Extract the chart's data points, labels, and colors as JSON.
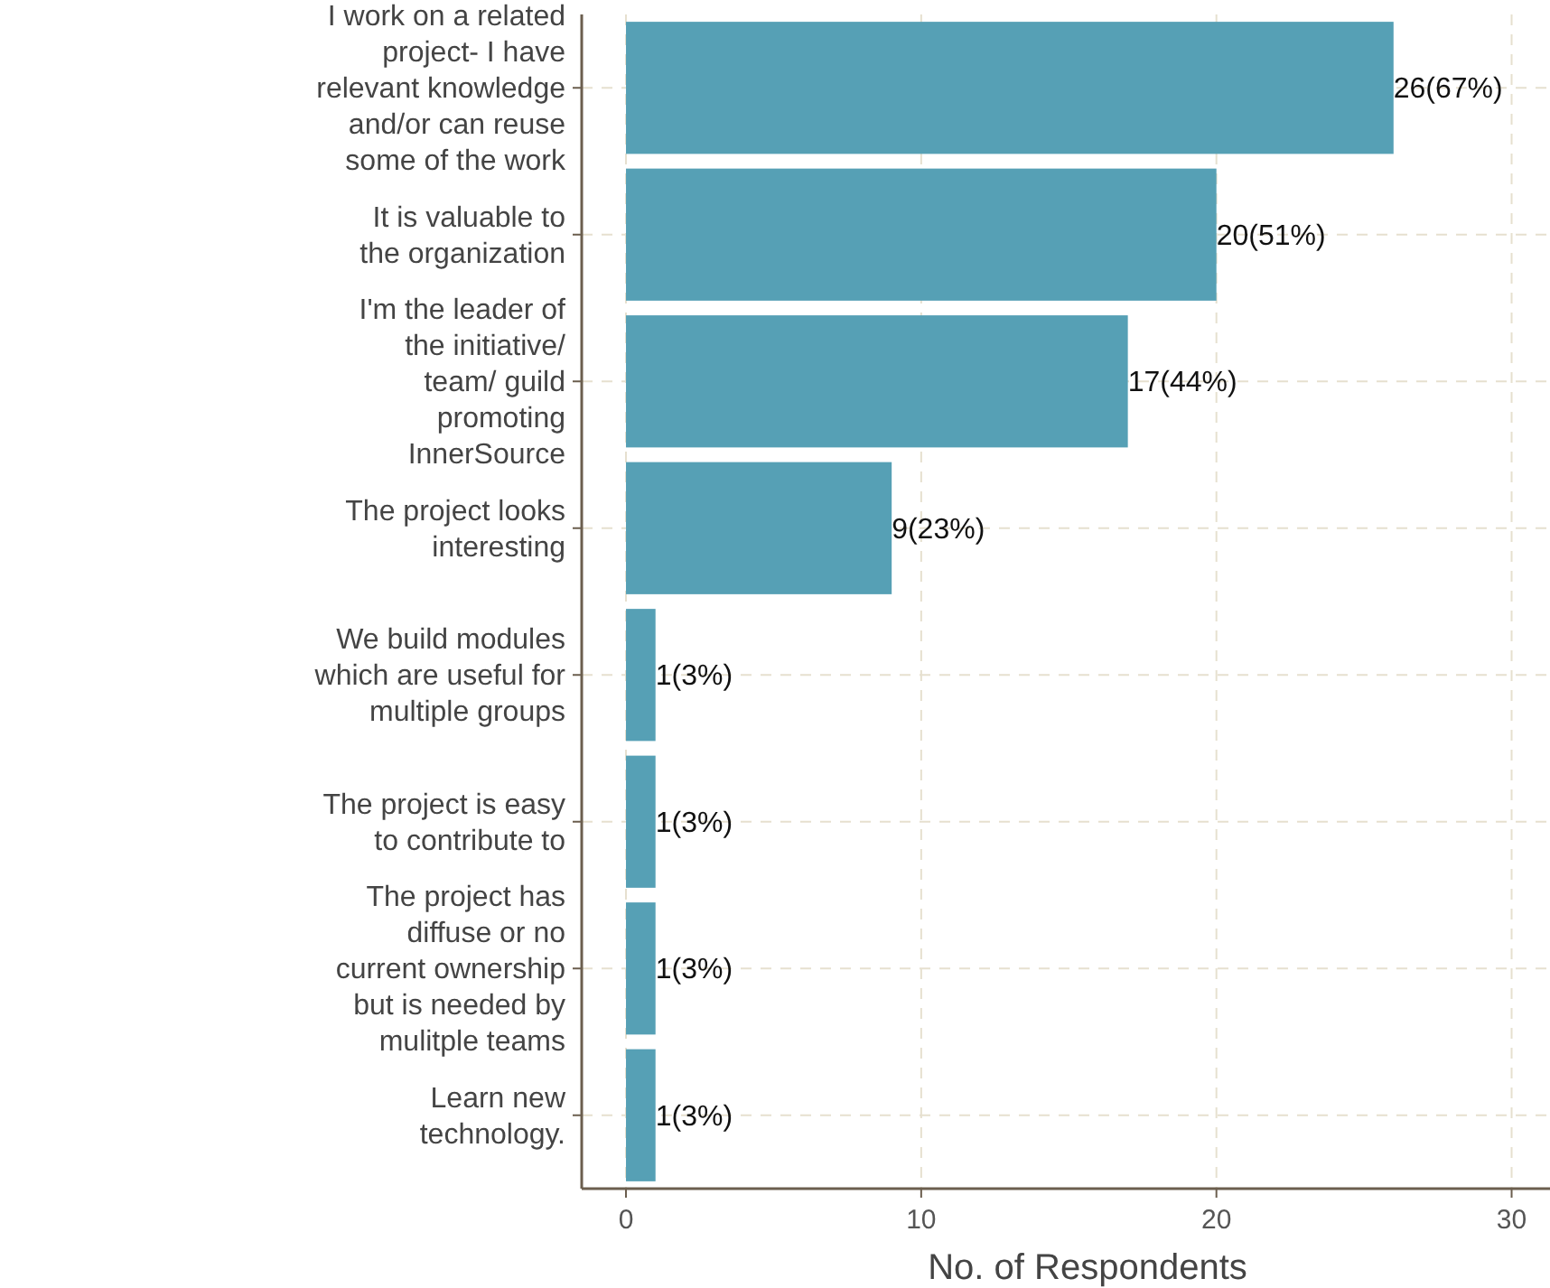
{
  "chart_data": {
    "type": "bar",
    "orientation": "horizontal",
    "xlabel": "No. of Respondents",
    "categories": [
      "I work on a related\nproject- I have\nrelevant knowledge\nand/or can reuse\nsome of the work",
      "It is valuable to\nthe organization",
      "I'm the leader of\nthe initiative/\nteam/ guild\npromoting\nInnerSource",
      "The project looks\ninteresting",
      "We build modules\nwhich are useful for\nmultiple groups",
      "The project is easy\nto contribute to",
      "The project has\ndiffuse or no\ncurrent ownership\nbut is needed by\nmulitple teams",
      "Learn new\ntechnology."
    ],
    "values": [
      26,
      20,
      17,
      9,
      1,
      1,
      1,
      1
    ],
    "value_labels": [
      "26(67%)",
      "20(51%)",
      "17(44%)",
      "9(23%)",
      "1(3%)",
      "1(3%)",
      "1(3%)",
      "1(3%)"
    ],
    "color": "#56a0b5",
    "xlim": [
      -1.5,
      31.3
    ],
    "xticks": [
      0,
      10,
      20,
      30
    ],
    "grid": true
  }
}
